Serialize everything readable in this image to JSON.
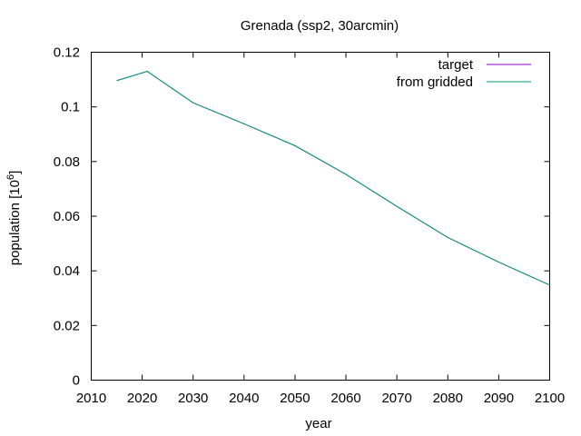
{
  "chart_data": {
    "type": "line",
    "title": "Grenada (ssp2, 30arcmin)",
    "xlabel": "year",
    "ylabel_base": "population [10",
    "ylabel_exp": "6",
    "ylabel_close": "]",
    "xlim": [
      2010,
      2100
    ],
    "ylim": [
      0,
      0.12
    ],
    "xticks": [
      2010,
      2020,
      2030,
      2040,
      2050,
      2060,
      2070,
      2080,
      2090,
      2100
    ],
    "yticks": [
      0,
      0.02,
      0.04,
      0.06,
      0.08,
      0.1,
      0.12
    ],
    "ytick_labels": [
      "0",
      "0.02",
      "0.04",
      "0.06",
      "0.08",
      "0.1",
      "0.12"
    ],
    "legend_position": "top-right",
    "x": [
      2015,
      2021,
      2030,
      2040,
      2050,
      2060,
      2070,
      2080,
      2090,
      2100
    ],
    "series": [
      {
        "name": "target",
        "color": "#9400d3",
        "values": [
          0.1096,
          0.113,
          0.1015,
          0.0938,
          0.0858,
          0.0753,
          0.0636,
          0.0522,
          0.0432,
          0.0348
        ]
      },
      {
        "name": "from gridded",
        "color": "#009e73",
        "values": [
          0.1096,
          0.113,
          0.1015,
          0.0938,
          0.0858,
          0.0753,
          0.0636,
          0.0522,
          0.0432,
          0.0348
        ]
      }
    ]
  }
}
